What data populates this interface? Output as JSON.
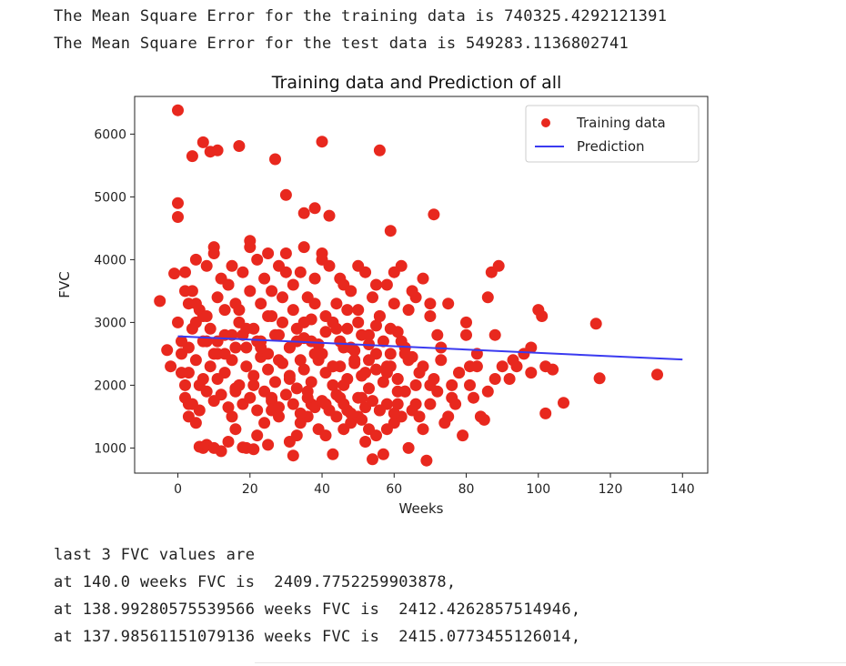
{
  "output": {
    "mse_train": "The Mean Square Error for the training data is 740325.4292121391",
    "mse_test": "The Mean Square Error for the test data is 549283.1136802741",
    "last_header": "last 3 FVC values are",
    "last_lines": [
      "at 140.0 weeks FVC is  2409.7752259903878,",
      "at 138.99280575539566 weeks FVC is  2412.4262857514946,",
      "at 137.98561151079136 weeks FVC is  2415.0773455126014,"
    ]
  },
  "colors": {
    "scatter": "#e8281e",
    "line": "#3a3af0"
  },
  "chart_data": {
    "type": "scatter",
    "title": "Training data and Prediction of all",
    "xlabel": "Weeks",
    "ylabel": "FVC",
    "xlim": [
      -12,
      147
    ],
    "ylim": [
      600,
      6600
    ],
    "xticks": [
      0,
      20,
      40,
      60,
      80,
      100,
      120,
      140
    ],
    "yticks": [
      1000,
      2000,
      3000,
      4000,
      5000,
      6000
    ],
    "xtick_labels": [
      "0",
      "20",
      "40",
      "60",
      "80",
      "100",
      "120",
      "140"
    ],
    "ytick_labels": [
      "1000",
      "2000",
      "3000",
      "4000",
      "5000",
      "6000"
    ],
    "legend": {
      "placement": "upper-right",
      "entries": [
        "Training data",
        "Prediction"
      ]
    },
    "series": [
      {
        "name": "Training data",
        "type": "scatter",
        "x": [
          0,
          0,
          4,
          7,
          9,
          11,
          17,
          27,
          40,
          56,
          0,
          30,
          35,
          38,
          42,
          59,
          71,
          -5,
          -3,
          -2,
          -1,
          0,
          1,
          2,
          3,
          3,
          5,
          6,
          7,
          8,
          10,
          12,
          14,
          15,
          16,
          18,
          19,
          21,
          22,
          24,
          25,
          26,
          28,
          31,
          32,
          33,
          34,
          36,
          37,
          39,
          41,
          43,
          44,
          45,
          46,
          47,
          48,
          50,
          51,
          52,
          53,
          54,
          55,
          57,
          58,
          60,
          61,
          62,
          63,
          64,
          65,
          66,
          67,
          68,
          69,
          70,
          72,
          73,
          74,
          75,
          76,
          77,
          78,
          79,
          80,
          81,
          82,
          83,
          84,
          85,
          86,
          87,
          88,
          89,
          90,
          92,
          94,
          96,
          98,
          100,
          101,
          102,
          104,
          107,
          116,
          117,
          133,
          2,
          4,
          6,
          8,
          10,
          12,
          14,
          16,
          18,
          20,
          22,
          24,
          26,
          28,
          30,
          32,
          34,
          36,
          38,
          40,
          42,
          44,
          46,
          48,
          50,
          52,
          54,
          56,
          58,
          60,
          62,
          64,
          66,
          68,
          70,
          72,
          3,
          5,
          7,
          9,
          11,
          13,
          15,
          17,
          19,
          21,
          23,
          25,
          27,
          29,
          31,
          33,
          35,
          37,
          39,
          41,
          43,
          45,
          47,
          49,
          51,
          53,
          55,
          57,
          59,
          61,
          63,
          65,
          1,
          3,
          5,
          7,
          9,
          11,
          13,
          15,
          17,
          19,
          21,
          23,
          25,
          27,
          29,
          31,
          33,
          35,
          37,
          39,
          41,
          43,
          45,
          47,
          49,
          51,
          53,
          55,
          57,
          59,
          61,
          63,
          2,
          4,
          6,
          8,
          10,
          12,
          14,
          16,
          18,
          20,
          22,
          24,
          26,
          28,
          30,
          32,
          34,
          36,
          38,
          40,
          42,
          44,
          46,
          48,
          50,
          52,
          54,
          56,
          58,
          60,
          2,
          5,
          8,
          11,
          14,
          17,
          20,
          23,
          26,
          29,
          32,
          35,
          38,
          41,
          44,
          47,
          50,
          53,
          56,
          59,
          62,
          4,
          7,
          10,
          13,
          16,
          19,
          22,
          25,
          28,
          31,
          34,
          37,
          40,
          43,
          46,
          49,
          52,
          55,
          58,
          61,
          64,
          67,
          70,
          5,
          10,
          15,
          20,
          25,
          30,
          35,
          40,
          45,
          50,
          55,
          60,
          65,
          70,
          75,
          80,
          1,
          6,
          11,
          16,
          21,
          26,
          31,
          36,
          41,
          46,
          51,
          56,
          61,
          66,
          71,
          76,
          81,
          86,
          3,
          8,
          13,
          18,
          23,
          28,
          33,
          38,
          43,
          48,
          53,
          58,
          63,
          68,
          73,
          78,
          83,
          88,
          93,
          98,
          102
        ],
        "y": [
          6380,
          4900,
          5650,
          5870,
          5720,
          5740,
          5810,
          5600,
          5880,
          5740,
          4680,
          5030,
          4740,
          4820,
          4700,
          4460,
          4720,
          3340,
          2560,
          2300,
          3780,
          3000,
          2500,
          2000,
          1700,
          1500,
          1400,
          1020,
          1000,
          1050,
          1000,
          950,
          1100,
          1500,
          1300,
          1010,
          1000,
          980,
          1200,
          1400,
          1050,
          1600,
          1500,
          1100,
          880,
          1200,
          1400,
          1500,
          1700,
          1300,
          1200,
          900,
          1500,
          1800,
          1300,
          1600,
          1400,
          1500,
          1450,
          1100,
          1300,
          820,
          1200,
          900,
          1300,
          1400,
          1700,
          1500,
          1900,
          1000,
          1600,
          2000,
          1500,
          1300,
          800,
          1700,
          1900,
          2600,
          1400,
          1500,
          2000,
          1700,
          2200,
          1200,
          2800,
          2300,
          1800,
          2500,
          1500,
          1450,
          3400,
          3800,
          2800,
          3900,
          2300,
          2100,
          2300,
          2500,
          2600,
          3200,
          3100,
          1550,
          2250,
          1720,
          2980,
          2110,
          2170,
          3800,
          3500,
          3200,
          3900,
          4100,
          3700,
          3600,
          3300,
          3800,
          4200,
          4000,
          3700,
          3500,
          3900,
          4100,
          3600,
          3800,
          3400,
          3700,
          4100,
          3900,
          3300,
          3600,
          3500,
          3200,
          3800,
          3400,
          3100,
          3600,
          3300,
          3900,
          3200,
          3400,
          3700,
          3100,
          2800,
          3300,
          3000,
          3100,
          2900,
          2700,
          3200,
          2800,
          3000,
          2600,
          2900,
          2700,
          3100,
          2800,
          3000,
          2600,
          2900,
          2750,
          3050,
          2650,
          2850,
          3000,
          2700,
          2900,
          2550,
          2800,
          2650,
          2950,
          2700,
          2500,
          2850,
          2600,
          2450,
          2700,
          2200,
          2400,
          2100,
          2300,
          2500,
          2200,
          2400,
          2000,
          2300,
          2150,
          2450,
          2250,
          2050,
          2350,
          2150,
          1950,
          2250,
          2050,
          2400,
          2200,
          2000,
          2300,
          2100,
          2350,
          2150,
          1950,
          2250,
          2050,
          2300,
          2100,
          1900,
          1800,
          1700,
          1600,
          1900,
          1750,
          1850,
          1650,
          1950,
          1700,
          1800,
          1600,
          1900,
          1750,
          1650,
          1850,
          1700,
          1550,
          1800,
          1650,
          1750,
          1600,
          1850,
          1700,
          1550,
          1800,
          1650,
          1750,
          1600,
          1700,
          1550,
          3500,
          3300,
          3100,
          3400,
          3600,
          3200,
          3500,
          3300,
          3100,
          3400,
          3200,
          3000,
          3300,
          3100,
          2900,
          3200,
          3000,
          2800,
          3100,
          2900,
          2700,
          2900,
          2700,
          2500,
          2800,
          2600,
          2900,
          2700,
          2500,
          2800,
          2600,
          2400,
          2700,
          2500,
          2300,
          2600,
          2400,
          2200,
          2500,
          2300,
          2100,
          2400,
          2200,
          2000,
          4000,
          4200,
          3900,
          4300,
          4100,
          3800,
          4200,
          4000,
          3700,
          3900,
          3600,
          3800,
          3500,
          3300,
          3300,
          3000,
          2200,
          2000,
          2100,
          1900,
          2000,
          1800,
          2100,
          1900,
          1700,
          2000,
          1800,
          1600,
          1900,
          1700,
          2100,
          1800,
          2000,
          1900,
          2600,
          2700,
          2500,
          2800,
          2600,
          2400,
          2700,
          2500,
          2300,
          2600,
          2400,
          2200,
          2500,
          2300,
          2400,
          2200,
          2300,
          2100,
          2400,
          2200,
          2300
        ]
      },
      {
        "name": "Prediction",
        "type": "line",
        "x": [
          0,
          140
        ],
        "y": [
          2780,
          2409.78
        ]
      }
    ]
  }
}
